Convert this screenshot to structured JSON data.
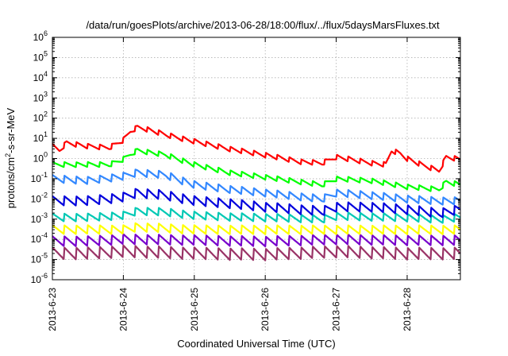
{
  "chart_data": {
    "type": "line",
    "title": "/data/run/goesPlots/archive/2013-06-28/18:00/flux/../flux/5daysMarsFluxes.txt",
    "xlabel": "Coordinated Universal Time (UTC)",
    "ylabel": "protons/cm²-s-sr-MeV",
    "y_scale": "log",
    "ylim": [
      1e-06,
      1000000.0
    ],
    "xlim": [
      "2013-06-23 00:00",
      "2013-06-28 18:00"
    ],
    "grid": true,
    "legend": "none",
    "x_ticks": [
      "2013-6-23",
      "2013-6-24",
      "2013-6-25",
      "2013-6-26",
      "2013-6-27",
      "2013-6-28"
    ],
    "y_ticks": [
      "10^-6",
      "10^-5",
      "10^-4",
      "10^-3",
      "10^-2",
      "10^-1",
      "10^0",
      "10^1",
      "10^2",
      "10^3",
      "10^4",
      "10^5",
      "10^6"
    ],
    "series": [
      {
        "color": "#ff0000",
        "values": [
          [
            0,
            4
          ],
          [
            0.1,
            2.5
          ],
          [
            0.2,
            6
          ],
          [
            0.5,
            4
          ],
          [
            0.8,
            3.5
          ],
          [
            1.0,
            8
          ],
          [
            1.1,
            22
          ],
          [
            1.2,
            35
          ],
          [
            1.3,
            30
          ],
          [
            1.6,
            15
          ],
          [
            2.0,
            7
          ],
          [
            2.5,
            3
          ],
          [
            3.0,
            1.5
          ],
          [
            3.5,
            0.7
          ],
          [
            3.8,
            0.6
          ],
          [
            4.0,
            1.2
          ],
          [
            4.3,
            0.8
          ],
          [
            4.5,
            0.6
          ],
          [
            4.7,
            0.5
          ],
          [
            4.78,
            2.5
          ],
          [
            4.9,
            1.8
          ],
          [
            5.0,
            1.0
          ],
          [
            5.2,
            0.5
          ],
          [
            5.45,
            0.25
          ],
          [
            5.55,
            1.2
          ],
          [
            5.75,
            0.9
          ]
        ]
      },
      {
        "color": "#00ff00",
        "values": [
          [
            0,
            0.5
          ],
          [
            0.2,
            0.5
          ],
          [
            0.5,
            0.5
          ],
          [
            0.8,
            0.5
          ],
          [
            1.0,
            0.9
          ],
          [
            1.1,
            1.6
          ],
          [
            1.2,
            2.5
          ],
          [
            1.3,
            2.2
          ],
          [
            1.6,
            1.5
          ],
          [
            2.0,
            0.5
          ],
          [
            2.5,
            0.2
          ],
          [
            3.0,
            0.12
          ],
          [
            3.5,
            0.07
          ],
          [
            3.8,
            0.05
          ],
          [
            4.0,
            0.1
          ],
          [
            4.5,
            0.08
          ],
          [
            5.0,
            0.04
          ],
          [
            5.45,
            0.03
          ],
          [
            5.55,
            0.07
          ],
          [
            5.75,
            0.05
          ]
        ]
      },
      {
        "color": "#3388ff",
        "values": [
          [
            0,
            0.1
          ],
          [
            0.5,
            0.08
          ],
          [
            1.0,
            0.13
          ],
          [
            1.2,
            0.2
          ],
          [
            1.6,
            0.15
          ],
          [
            2.0,
            0.05
          ],
          [
            2.5,
            0.03
          ],
          [
            3.0,
            0.02
          ],
          [
            3.5,
            0.013
          ],
          [
            3.8,
            0.01
          ],
          [
            4.0,
            0.02
          ],
          [
            4.5,
            0.015
          ],
          [
            5.0,
            0.01
          ],
          [
            5.45,
            0.008
          ],
          [
            5.75,
            0.008
          ]
        ]
      },
      {
        "color": "#0000dd",
        "values": [
          [
            0,
            0.008
          ],
          [
            0.5,
            0.008
          ],
          [
            1.0,
            0.012
          ],
          [
            1.2,
            0.02
          ],
          [
            1.6,
            0.015
          ],
          [
            2.0,
            0.008
          ],
          [
            2.5,
            0.006
          ],
          [
            3.0,
            0.004
          ],
          [
            3.5,
            0.003
          ],
          [
            3.8,
            0.0025
          ],
          [
            4.0,
            0.004
          ],
          [
            4.5,
            0.004
          ],
          [
            5.0,
            0.003
          ],
          [
            5.45,
            0.002
          ],
          [
            5.75,
            0.003
          ]
        ]
      },
      {
        "color": "#00c8b4",
        "values": [
          [
            0,
            0.0012
          ],
          [
            0.5,
            0.0012
          ],
          [
            1.0,
            0.0015
          ],
          [
            1.2,
            0.0025
          ],
          [
            1.6,
            0.0022
          ],
          [
            2.0,
            0.0015
          ],
          [
            2.5,
            0.0013
          ],
          [
            3.0,
            0.0012
          ],
          [
            3.5,
            0.0011
          ],
          [
            3.8,
            0.001
          ],
          [
            4.0,
            0.0014
          ],
          [
            4.5,
            0.0013
          ],
          [
            5.0,
            0.0012
          ],
          [
            5.45,
            0.001
          ],
          [
            5.75,
            0.0012
          ]
        ]
      },
      {
        "color": "#ffff00",
        "values": [
          [
            0,
            0.0003
          ],
          [
            0.5,
            0.0003
          ],
          [
            1.0,
            0.0003
          ],
          [
            1.2,
            0.0004
          ],
          [
            2.0,
            0.0003
          ],
          [
            3.0,
            0.0003
          ],
          [
            4.0,
            0.0003
          ],
          [
            5.0,
            0.0003
          ],
          [
            5.75,
            0.0003
          ]
        ]
      },
      {
        "color": "#7700cc",
        "values": [
          [
            0,
            8e-05
          ],
          [
            0.5,
            8e-05
          ],
          [
            1.0,
            0.0001
          ],
          [
            2.0,
            9e-05
          ],
          [
            3.0,
            8e-05
          ],
          [
            4.0,
            0.0001
          ],
          [
            5.0,
            9e-05
          ],
          [
            5.75,
            9e-05
          ]
        ]
      },
      {
        "color": "#993366",
        "values": [
          [
            0,
            2e-05
          ],
          [
            0.5,
            2e-05
          ],
          [
            1.0,
            2.5e-05
          ],
          [
            2.0,
            2e-05
          ],
          [
            3.0,
            1.8e-05
          ],
          [
            4.0,
            2.5e-05
          ],
          [
            5.0,
            2e-05
          ],
          [
            5.75,
            2e-05
          ]
        ]
      }
    ]
  }
}
